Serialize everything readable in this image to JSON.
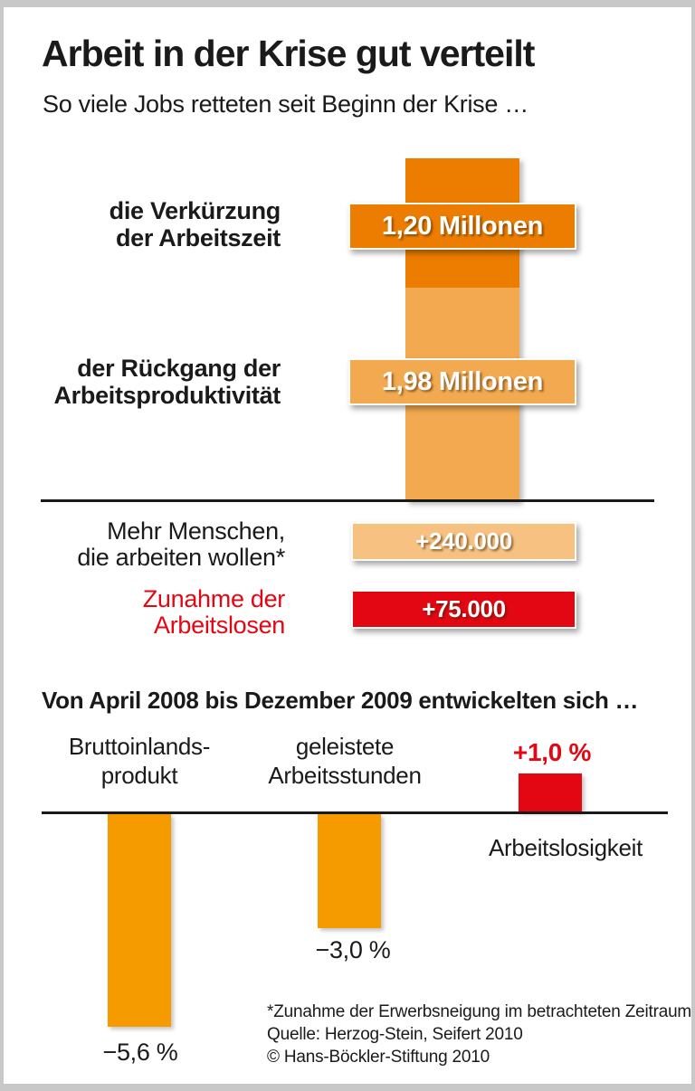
{
  "header": {
    "title": "Arbeit in der Krise gut verteilt",
    "subtitle": "So viele Jobs retteten seit Beginn der Krise …"
  },
  "colors": {
    "dark_orange": "#EC7D00",
    "light_orange": "#F3A94F",
    "pale_orange": "#F6C181",
    "orange": "#F59B00",
    "red": "#E30613",
    "text": "#1A1A1A",
    "frame": "#C8C8C8"
  },
  "top_chart": {
    "rows": [
      {
        "label_line1": "die Verkürzung",
        "label_line2": "der Arbeitszeit",
        "badge": "1,20 Millonen"
      },
      {
        "label_line1": "der Rückgang der",
        "label_line2": "Arbeitsproduktivität",
        "badge": "1,98 Millonen"
      },
      {
        "label_line1": "Mehr Menschen,",
        "label_line2": "die arbeiten wollen*",
        "badge": "+240.000"
      },
      {
        "label_line1": "Zunahme der",
        "label_line2": "Arbeitslosen",
        "badge": "+75.000"
      }
    ]
  },
  "bottom_chart": {
    "heading": "Von April 2008 bis Dezember 2009 entwickelten sich …",
    "col1_line1": "Bruttoinlands-",
    "col1_line2": "produkt",
    "col2_line1": "geleistete",
    "col2_line2": "Arbeitsstunden",
    "col3_label": "Arbeitslosigkeit",
    "value1": "−5,6 %",
    "value2": "−3,0 %",
    "value3": "+1,0 %"
  },
  "footnotes": [
    "*Zunahme der Erwerbsneigung im betrachteten Zeitraum",
    "Quelle: Herzog-Stein, Seifert 2010",
    "© Hans-Böckler-Stiftung 2010"
  ],
  "chart_data": [
    {
      "type": "bar",
      "subtype": "stacked-column-with-callouts",
      "title": "So viele Jobs retteten seit Beginn der Krise …",
      "unit": "jobs",
      "segments": [
        {
          "label": "die Verkürzung der Arbeitszeit",
          "value_millions": 1.2,
          "value_label": "1,20 Millonen",
          "color": "#EC7D00"
        },
        {
          "label": "der Rückgang der Arbeitsproduktivität",
          "value_millions": 1.98,
          "value_label": "1,98 Millonen",
          "color": "#F3A94F"
        }
      ],
      "callouts": [
        {
          "label": "Mehr Menschen, die arbeiten wollen*",
          "value": 240000,
          "value_label": "+240.000",
          "color": "#F6C181"
        },
        {
          "label": "Zunahme der Arbeitslosen",
          "value": 75000,
          "value_label": "+75.000",
          "color": "#E30613"
        }
      ],
      "legend": false,
      "grid": false
    },
    {
      "type": "bar",
      "title": "Von April 2008 bis Dezember 2009 entwickelten sich …",
      "categories": [
        "Bruttoinlandsprodukt",
        "geleistete Arbeitsstunden",
        "Arbeitslosigkeit"
      ],
      "values": [
        -5.6,
        -3.0,
        1.0
      ],
      "value_labels": [
        "−5,6 %",
        "−3,0 %",
        "+1,0 %"
      ],
      "colors": [
        "#F59B00",
        "#F59B00",
        "#E30613"
      ],
      "unit": "percent",
      "baseline": 0,
      "ylim": [
        -6,
        1.5
      ],
      "grid": false,
      "legend": false
    }
  ]
}
